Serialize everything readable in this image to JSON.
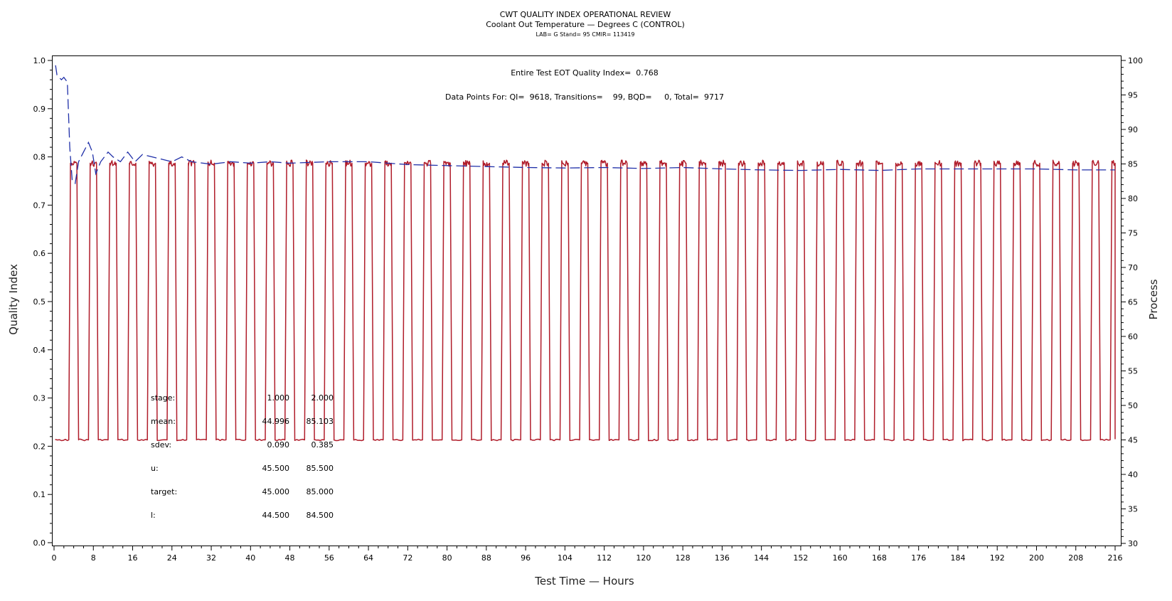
{
  "chart_data": {
    "type": "line",
    "title": "CWT QUALITY INDEX OPERATIONAL REVIEW",
    "subtitle": "Coolant Out Temperature — Degrees C (CONTROL)",
    "subtitle2": "LAB= G Stand= 95 CMIR= 113419",
    "xlabel": "Test Time — Hours",
    "ylabel": "Quality Index",
    "ylabel_right": "Process",
    "xlim": [
      0,
      216
    ],
    "ylim": [
      0.0,
      1.0
    ],
    "ylim_right": [
      30,
      100
    ],
    "x_ticks": [
      "0",
      "8",
      "16",
      "24",
      "32",
      "40",
      "48",
      "56",
      "64",
      "72",
      "80",
      "88",
      "96",
      "104",
      "112",
      "120",
      "128",
      "136",
      "144",
      "152",
      "160",
      "168",
      "176",
      "184",
      "192",
      "200",
      "208",
      "216"
    ],
    "y_ticks": [
      "0.0",
      "0.1",
      "0.2",
      "0.3",
      "0.4",
      "0.5",
      "0.6",
      "0.7",
      "0.8",
      "0.9",
      "1.0"
    ],
    "y_right_ticks": [
      "30",
      "35",
      "40",
      "45",
      "50",
      "55",
      "60",
      "65",
      "70",
      "75",
      "80",
      "85",
      "90",
      "95",
      "100"
    ],
    "annotations": {
      "quality_index_line": "Entire Test EOT Quality Index=  0.768",
      "data_points_line": "Data Points For: QI=  9618, Transitions=    99, BQD=     0, Total=  9717"
    },
    "stats_table": {
      "rows": [
        {
          "label": "stage:",
          "v1": "1.000",
          "v2": "2.000"
        },
        {
          "label": "mean:",
          "v1": "44.996",
          "v2": "85.103"
        },
        {
          "label": "sdev:",
          "v1": "0.090",
          "v2": "0.385"
        },
        {
          "label": "u:",
          "v1": "45.500",
          "v2": "85.500"
        },
        {
          "label": "target:",
          "v1": "45.000",
          "v2": "85.000"
        },
        {
          "label": "l:",
          "v1": "44.500",
          "v2": "84.500"
        }
      ]
    },
    "series": [
      {
        "name": "Quality Index",
        "axis": "left",
        "color": "#1f2fa8",
        "style": "dashed",
        "x": [
          0.3,
          0.6,
          1.0,
          1.5,
          2.0,
          2.7,
          3.2,
          3.7,
          4.3,
          5.0,
          6.0,
          7.0,
          7.8,
          8.5,
          9.5,
          11,
          12,
          13.5,
          15,
          16.5,
          18,
          20,
          22,
          24,
          26,
          28,
          32,
          36,
          40,
          44,
          48,
          56,
          64,
          72,
          80,
          88,
          96,
          104,
          112,
          120,
          128,
          136,
          144,
          152,
          160,
          168,
          176,
          184,
          192,
          200,
          208,
          216
        ],
        "y": [
          0.99,
          0.97,
          0.965,
          0.96,
          0.965,
          0.955,
          0.82,
          0.75,
          0.745,
          0.79,
          0.81,
          0.83,
          0.81,
          0.765,
          0.79,
          0.81,
          0.8,
          0.79,
          0.81,
          0.79,
          0.805,
          0.8,
          0.795,
          0.79,
          0.8,
          0.79,
          0.785,
          0.79,
          0.787,
          0.79,
          0.787,
          0.79,
          0.79,
          0.784,
          0.782,
          0.78,
          0.778,
          0.777,
          0.778,
          0.776,
          0.778,
          0.775,
          0.773,
          0.772,
          0.774,
          0.772,
          0.775,
          0.775,
          0.775,
          0.775,
          0.773,
          0.773
        ]
      },
      {
        "name": "Process",
        "axis": "right",
        "color": "#b01c2a",
        "style": "solid",
        "low_value": 44.996,
        "high_value": 85.103,
        "cycle_hours": 4.0,
        "first_rise_hours": 3.0,
        "high_duration_hours": 1.3,
        "cycles": 54
      }
    ]
  }
}
